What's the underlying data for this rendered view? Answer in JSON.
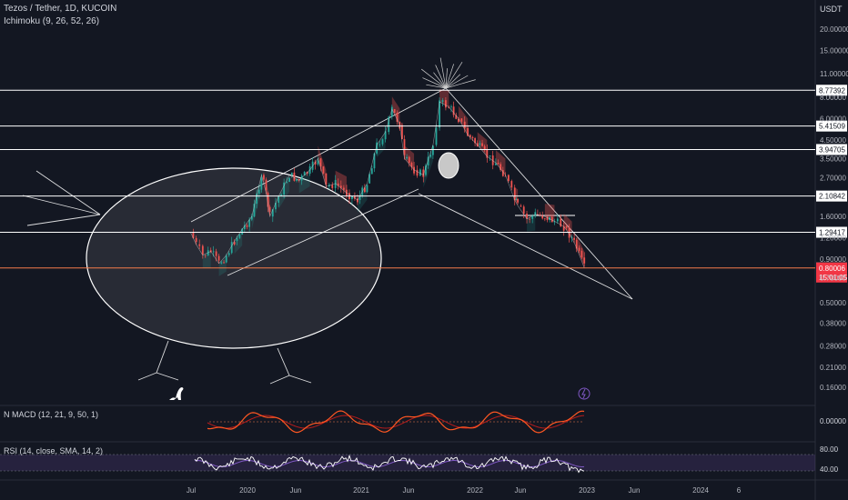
{
  "header": {
    "title": "Tezos / Tether, 1D, KUCOIN",
    "indicator": "Ichimoku (9, 26, 52, 26)",
    "currency": "USDT"
  },
  "macd": {
    "label": "N MACD (12, 21, 9, 50, 1)",
    "axis_label": "0.00000"
  },
  "rsi": {
    "label": "RSI (14, close, SMA, 14, 2)",
    "upper_label": "80.00",
    "lower_label": "40.00"
  },
  "price": {
    "current": "0.80006",
    "countdown": "15:01:05",
    "current_color": "#f23645"
  },
  "colors": {
    "background": "#131722",
    "bull": "#26a69a",
    "bear": "#ef5350",
    "line": "#ffffff",
    "price_line": "#f57c4a",
    "macd": "#ff5722",
    "rsi": "#ffffff"
  },
  "chart_data": {
    "type": "line",
    "title": "Tezos / Tether, 1D, KUCOIN",
    "ylabel": "USDT",
    "y_scale": "log",
    "ylim": [
      0.13,
      30
    ],
    "x_ticks": [
      "Jul",
      "2020",
      "Jun",
      "2021",
      "Jun",
      "2022",
      "Jun",
      "2023",
      "Jun",
      "2024",
      "6"
    ],
    "y_ticks": [
      "20.00000",
      "15.00000",
      "11.00000",
      "8.00000",
      "6.00000",
      "4.50000",
      "3.50000",
      "2.70000",
      "1.60000",
      "1.20000",
      "0.90000",
      "0.70000",
      "0.50000",
      "0.38000",
      "0.28000",
      "0.21000",
      "0.16000"
    ],
    "horizontal_levels": [
      "8.77392",
      "5.41509",
      "3.94705",
      "2.10842",
      "1.29417",
      "0.79970"
    ],
    "series": [
      {
        "name": "",
        "x": [
          "2019-07-01",
          "2019-07-20",
          "2019-08-10",
          "2019-09-05",
          "2019-10-01",
          "2019-10-25",
          "2019-11-20",
          "2019-12-15",
          "2020-01-15",
          "2020-02-15",
          "2020-03-01",
          "2020-03-13",
          "2020-04-10",
          "2020-05-15",
          "2020-06-15",
          "2020-07-20",
          "2020-08-15",
          "2020-09-10",
          "2020-10-10",
          "2020-11-15",
          "2020-12-20",
          "2021-01-20",
          "2021-02-20",
          "2021-03-20",
          "2021-04-10",
          "2021-05-05",
          "2021-05-20",
          "2021-06-20",
          "2021-07-20",
          "2021-08-20",
          "2021-09-10",
          "2021-10-10",
          "2021-11-10",
          "2021-12-10",
          "2022-01-10",
          "2022-02-10",
          "2022-03-10",
          "2022-04-10",
          "2022-05-10",
          "2022-05-20",
          "2022-06-18",
          "2022-07-15",
          "2022-08-15",
          "2022-09-15",
          "2022-10-15",
          "2022-11-10",
          "2022-11-25",
          "2022-12-20"
        ],
        "y": [
          1.3,
          1.1,
          0.95,
          1.0,
          0.85,
          0.95,
          1.15,
          1.35,
          1.6,
          2.8,
          2.2,
          1.6,
          2.1,
          2.8,
          2.6,
          3.0,
          3.5,
          2.4,
          2.5,
          2.2,
          2.0,
          2.5,
          4.2,
          5.0,
          6.8,
          5.5,
          3.5,
          3.0,
          2.8,
          4.2,
          7.5,
          7.0,
          6.0,
          4.8,
          4.2,
          3.6,
          3.3,
          2.8,
          2.0,
          1.85,
          1.55,
          1.65,
          1.6,
          1.5,
          1.4,
          1.2,
          1.05,
          0.80006
        ]
      }
    ],
    "legend": "none",
    "grid": false
  }
}
